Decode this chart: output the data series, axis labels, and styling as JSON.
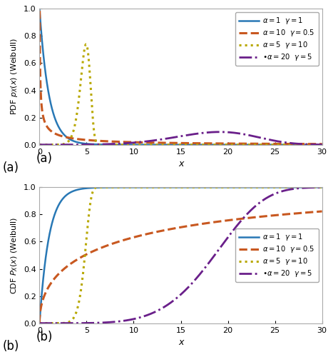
{
  "xlim": [
    0,
    30
  ],
  "pdf_ylim": [
    0,
    1.0
  ],
  "cdf_ylim": [
    0,
    1.0
  ],
  "xticks": [
    0,
    5,
    10,
    15,
    20,
    25,
    30
  ],
  "pdf_yticks": [
    0,
    0.2,
    0.4,
    0.6,
    0.8,
    1.0
  ],
  "cdf_yticks": [
    0,
    0.2,
    0.4,
    0.6,
    0.8,
    1.0
  ],
  "xlabel": "x",
  "pdf_ylabel": "PDF $p_X(x)$ (Weibull)",
  "cdf_ylabel": "CDF $P_X(x)$ (Weibull)",
  "series": [
    {
      "alpha": 1,
      "gamma": 1,
      "color": "#2878b5",
      "linestyle": "-",
      "linewidth": 1.8
    },
    {
      "alpha": 10,
      "gamma": 0.5,
      "color": "#c85820",
      "linestyle": "--",
      "linewidth": 2.2
    },
    {
      "alpha": 5,
      "gamma": 10,
      "color": "#b8a800",
      "linestyle": ":",
      "linewidth": 2.2
    },
    {
      "alpha": 20,
      "gamma": 5,
      "color": "#6a1f8a",
      "linestyle": "-.",
      "linewidth": 2.0
    }
  ],
  "legend_labels": [
    "$\\alpha = 1\\ \\ \\gamma = 1$",
    "$\\alpha = 10\\ \\ \\gamma = 0.5$",
    "$\\alpha = 5\\ \\ \\gamma = 10$",
    "$\\bullet\\alpha = 20\\ \\ \\gamma = 5$"
  ],
  "legend_pdf_loc": "upper right",
  "legend_cdf_loc": "center right",
  "label_a": "(a)",
  "label_b": "(b)",
  "ax_facecolor": "#ffffff",
  "fig_facecolor": "#ffffff",
  "spine_color": "#aaaaaa"
}
